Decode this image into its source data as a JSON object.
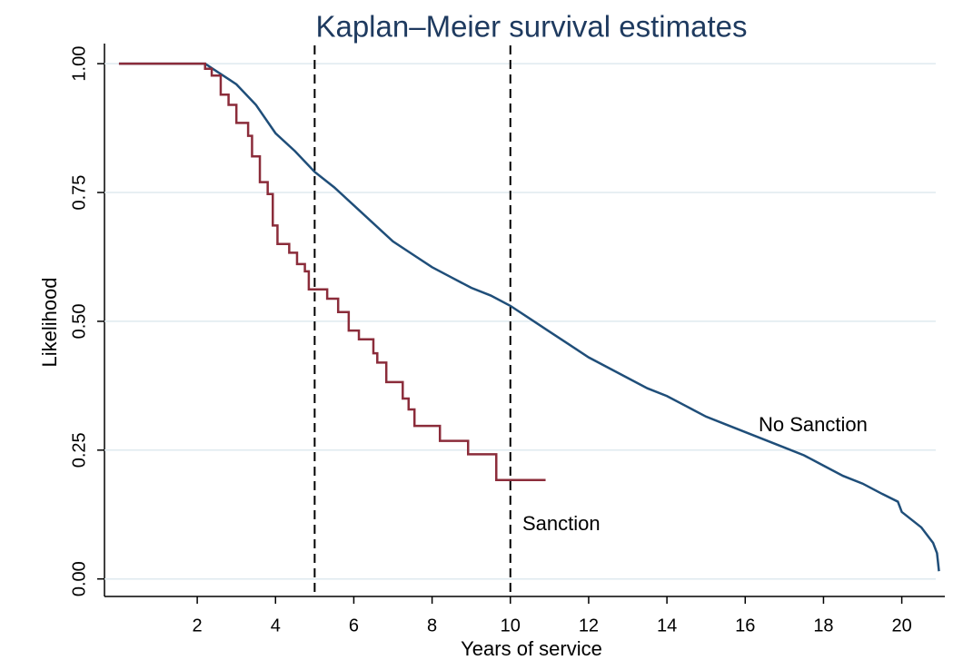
{
  "chart_data": {
    "type": "line",
    "title": "Kaplan–Meier survival estimates",
    "x_label": "Years of service",
    "y_label": "Likelihood",
    "xlim": [
      -0.37,
      21.1
    ],
    "ylim": [
      -0.034,
      1.039
    ],
    "xticks": [
      2,
      4,
      6,
      8,
      10,
      12,
      14,
      16,
      18,
      20
    ],
    "yticks": [
      {
        "value": 0,
        "label": "0.00"
      },
      {
        "value": 0.25,
        "label": "0.25"
      },
      {
        "value": 0.5,
        "label": "0.50"
      },
      {
        "value": 0.75,
        "label": "0.75"
      },
      {
        "value": 1,
        "label": "1.00"
      }
    ],
    "grid": true,
    "vlines": [
      5,
      10
    ],
    "series": [
      {
        "name": "No Sanction",
        "color": "#1f4e79",
        "drawstyle": "default",
        "x": [
          0,
          2.2,
          2.5,
          3,
          3.5,
          4,
          4.5,
          5,
          5.5,
          6,
          6.5,
          7,
          7.5,
          8,
          8.5,
          9,
          9.5,
          10,
          10.5,
          11,
          11.5,
          12,
          12.5,
          13,
          13.5,
          14,
          14.5,
          15,
          15.5,
          16,
          16.5,
          17,
          17.5,
          18,
          18.5,
          19,
          19.5,
          19.9,
          20,
          20.5,
          20.8,
          20.9,
          20.95
        ],
        "values": [
          1,
          1,
          0.985,
          0.96,
          0.92,
          0.865,
          0.83,
          0.79,
          0.76,
          0.725,
          0.69,
          0.655,
          0.63,
          0.605,
          0.585,
          0.565,
          0.55,
          0.53,
          0.505,
          0.48,
          0.455,
          0.43,
          0.41,
          0.39,
          0.37,
          0.355,
          0.335,
          0.315,
          0.3,
          0.285,
          0.27,
          0.255,
          0.24,
          0.22,
          0.2,
          0.185,
          0.165,
          0.15,
          0.13,
          0.1,
          0.07,
          0.05,
          0.015
        ]
      },
      {
        "name": "Sanction",
        "color": "#8b2c3a",
        "drawstyle": "steps-post",
        "x": [
          0,
          2.2,
          2.37,
          2.6,
          2.8,
          3.0,
          3.3,
          3.4,
          3.6,
          3.8,
          3.93,
          4.05,
          4.35,
          4.55,
          4.75,
          4.85,
          5.32,
          5.6,
          5.87,
          6.13,
          6.5,
          6.6,
          6.83,
          7.25,
          7.4,
          7.55,
          8.2,
          8.92,
          9.64,
          10.9
        ],
        "values": [
          1,
          0.99,
          0.977,
          0.94,
          0.92,
          0.885,
          0.86,
          0.82,
          0.77,
          0.747,
          0.686,
          0.65,
          0.633,
          0.611,
          0.597,
          0.562,
          0.544,
          0.518,
          0.482,
          0.465,
          0.438,
          0.42,
          0.382,
          0.35,
          0.329,
          0.297,
          0.268,
          0.242,
          0.192,
          0.192
        ]
      }
    ]
  }
}
